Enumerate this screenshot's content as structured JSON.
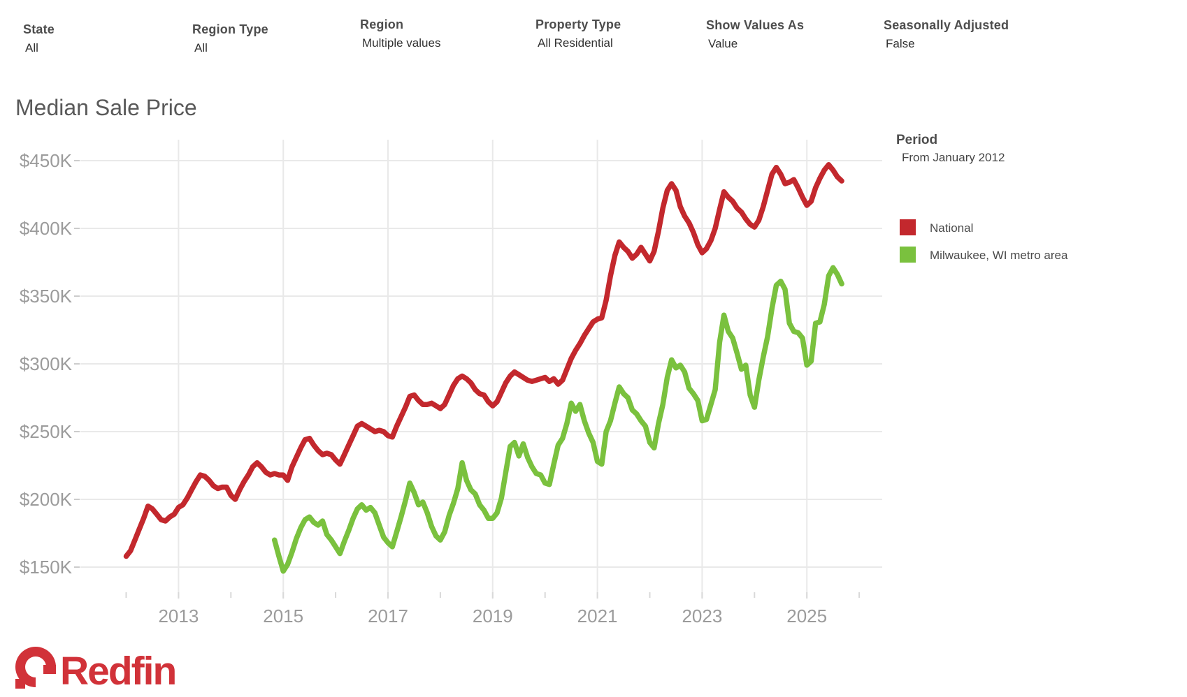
{
  "filters": [
    {
      "label": "State",
      "value": "All"
    },
    {
      "label": "Region Type",
      "value": "All"
    },
    {
      "label": "Region",
      "value": "Multiple values"
    },
    {
      "label": "Property Type",
      "value": "All Residential"
    },
    {
      "label": "Show Values As",
      "value": "Value"
    },
    {
      "label": "Seasonally Adjusted",
      "value": "False"
    }
  ],
  "title": "Median Sale Price",
  "legend": {
    "period_label": "Period",
    "period_value": "From January 2012",
    "items": [
      {
        "label": "National",
        "color": "#c3282d"
      },
      {
        "label": "Milwaukee, WI metro area",
        "color": "#7ac13e"
      }
    ]
  },
  "logo_text": "Redfin",
  "colors": {
    "national": "#c3282d",
    "milwaukee": "#7ac13e",
    "gridline": "#e9e9e9",
    "axis_text": "#9b9b9b",
    "tick": "#cccccc",
    "logo_red": "#d13239"
  },
  "chart_data": {
    "type": "line",
    "title": "Median Sale Price",
    "xlabel": "",
    "ylabel": "Median Sale Price ($)",
    "x_unit": "month",
    "x_start": "2012-01",
    "x_end": "2025-09",
    "x_tick_years": [
      2013,
      2015,
      2017,
      2019,
      2021,
      2023,
      2025
    ],
    "y_tick_labels": [
      "$450K",
      "$400K",
      "$350K",
      "$300K",
      "$250K",
      "$200K",
      "$150K"
    ],
    "y_tick_values_k": [
      450,
      400,
      350,
      300,
      250,
      200,
      150
    ],
    "ylim_k": [
      150,
      450
    ],
    "grid": true,
    "legend_position": "right",
    "series": [
      {
        "name": "National",
        "color": "#c3282d",
        "start": "2012-01",
        "values_k": [
          158,
          162,
          170,
          178,
          186,
          195,
          193,
          189,
          185,
          184,
          187,
          189,
          194,
          196,
          201,
          207,
          213,
          218,
          217,
          214,
          210,
          208,
          209,
          209,
          203,
          200,
          207,
          213,
          218,
          224,
          227,
          224,
          220,
          218,
          219,
          218,
          218,
          214,
          224,
          231,
          238,
          244,
          245,
          240,
          236,
          233,
          234,
          233,
          229,
          226,
          233,
          240,
          247,
          254,
          256,
          254,
          252,
          250,
          251,
          250,
          247,
          246,
          254,
          261,
          268,
          276,
          277,
          273,
          270,
          270,
          271,
          269,
          267,
          270,
          277,
          284,
          289,
          291,
          289,
          286,
          281,
          278,
          277,
          272,
          269,
          272,
          279,
          286,
          291,
          294,
          292,
          290,
          288,
          287,
          288,
          289,
          290,
          287,
          289,
          285,
          288,
          296,
          304,
          310,
          315,
          321,
          326,
          331,
          333,
          334,
          347,
          365,
          380,
          390,
          386,
          383,
          378,
          381,
          386,
          381,
          376,
          383,
          398,
          415,
          428,
          433,
          428,
          416,
          409,
          404,
          397,
          388,
          382,
          385,
          391,
          400,
          414,
          427,
          423,
          420,
          415,
          412,
          407,
          403,
          401,
          406,
          416,
          428,
          440,
          445,
          440,
          433,
          434,
          436,
          430,
          423,
          417,
          420,
          430,
          437,
          443,
          447,
          443,
          438,
          435
        ]
      },
      {
        "name": "Milwaukee, WI metro area",
        "color": "#7ac13e",
        "start": "2014-11",
        "values_k": [
          170,
          158,
          147,
          152,
          161,
          171,
          179,
          185,
          187,
          183,
          181,
          184,
          174,
          170,
          165,
          160,
          169,
          177,
          186,
          193,
          196,
          192,
          194,
          190,
          181,
          172,
          168,
          165,
          176,
          187,
          199,
          212,
          205,
          196,
          198,
          190,
          180,
          173,
          170,
          176,
          188,
          197,
          208,
          227,
          214,
          207,
          204,
          196,
          192,
          186,
          186,
          190,
          201,
          220,
          239,
          242,
          232,
          241,
          231,
          224,
          219,
          218,
          212,
          211,
          226,
          240,
          245,
          256,
          271,
          265,
          270,
          258,
          249,
          242,
          228,
          226,
          250,
          258,
          271,
          283,
          278,
          275,
          266,
          263,
          258,
          254,
          242,
          238,
          256,
          270,
          290,
          303,
          297,
          299,
          294,
          282,
          278,
          273,
          258,
          259,
          270,
          281,
          316,
          336,
          324,
          319,
          308,
          296,
          299,
          277,
          268,
          288,
          305,
          320,
          341,
          358,
          361,
          355,
          330,
          324,
          323,
          319,
          299,
          302,
          330,
          331,
          344,
          365,
          371,
          366,
          359
        ]
      }
    ]
  }
}
